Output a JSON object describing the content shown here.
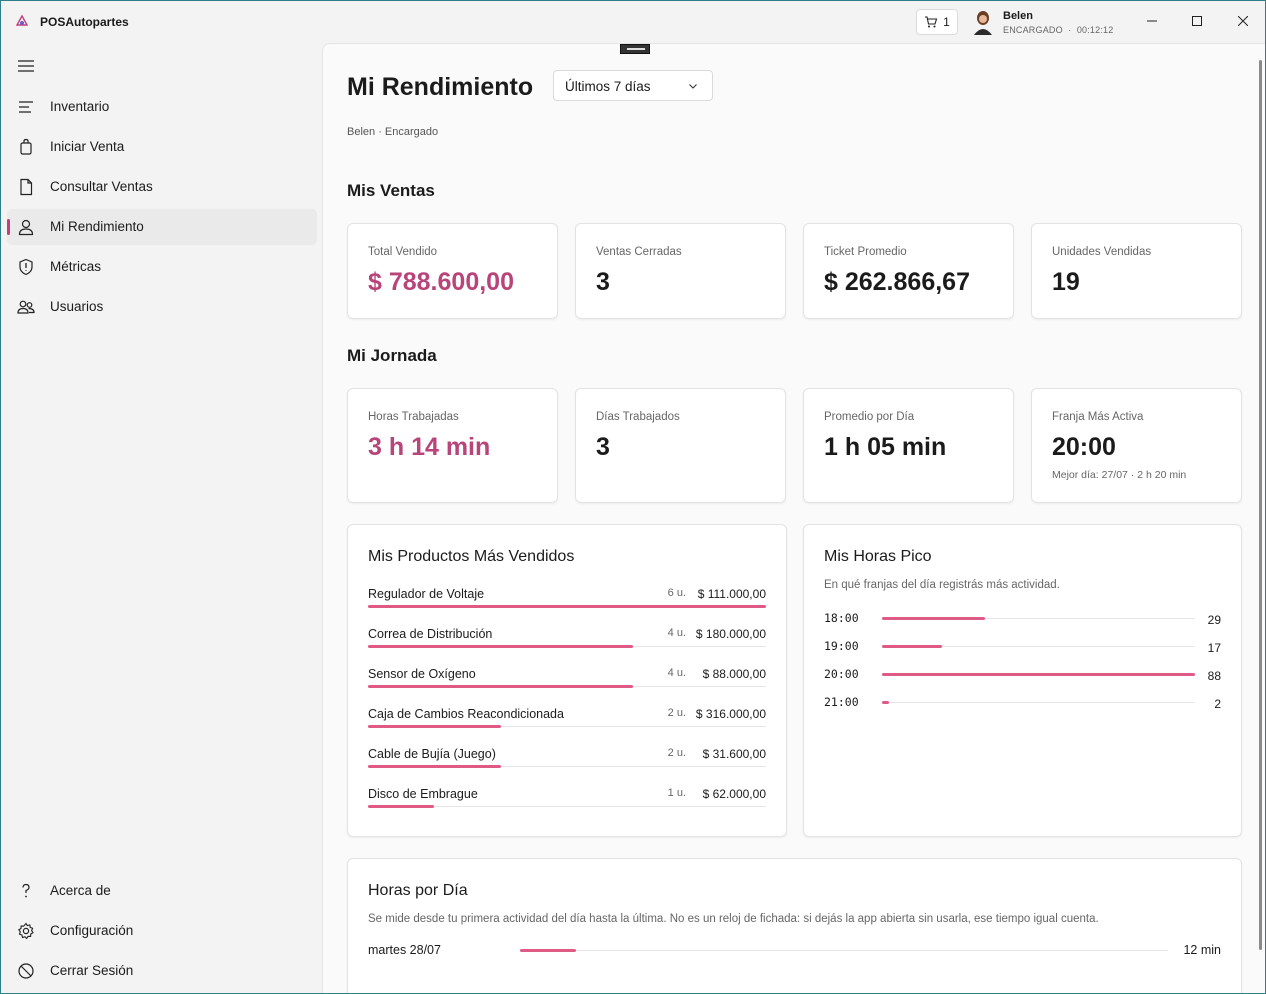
{
  "app": {
    "title": "POSAutopartes"
  },
  "header": {
    "cart_count": "1",
    "user_name": "Belen",
    "user_role": "ENCARGADO",
    "session_time": "00:12:12"
  },
  "sidebar": {
    "items": [
      {
        "label": "Inventario",
        "icon": "list-icon"
      },
      {
        "label": "Iniciar Venta",
        "icon": "bag-icon"
      },
      {
        "label": "Consultar Ventas",
        "icon": "document-icon"
      },
      {
        "label": "Mi Rendimiento",
        "icon": "person-icon",
        "active": true
      },
      {
        "label": "Métricas",
        "icon": "shield-icon"
      },
      {
        "label": "Usuarios",
        "icon": "people-icon"
      }
    ],
    "footer": [
      {
        "label": "Acerca de",
        "icon": "help-icon"
      },
      {
        "label": "Configuración",
        "icon": "gear-icon"
      },
      {
        "label": "Cerrar Sesión",
        "icon": "logout-icon"
      }
    ]
  },
  "page": {
    "title": "Mi Rendimiento",
    "range": "Últimos 7 días",
    "subtitle": "Belen · Encargado"
  },
  "ventas": {
    "title": "Mis Ventas",
    "cards": [
      {
        "label": "Total Vendido",
        "value": "$ 788.600,00",
        "accent": true
      },
      {
        "label": "Ventas Cerradas",
        "value": "3"
      },
      {
        "label": "Ticket Promedio",
        "value": "$ 262.866,67"
      },
      {
        "label": "Unidades Vendidas",
        "value": "19"
      }
    ]
  },
  "jornada": {
    "title": "Mi Jornada",
    "cards": [
      {
        "label": "Horas Trabajadas",
        "value": "3 h 14 min",
        "accent": true
      },
      {
        "label": "Días Trabajados",
        "value": "3"
      },
      {
        "label": "Promedio por Día",
        "value": "1 h 05 min"
      },
      {
        "label": "Franja Más Activa",
        "value": "20:00",
        "note": "Mejor día: 27/07 · 2 h 20 min"
      }
    ]
  },
  "productos": {
    "title": "Mis Productos Más Vendidos",
    "rows": [
      {
        "name": "Regulador de Voltaje",
        "qty": "6 u.",
        "amount": "$ 111.000,00",
        "units": 6
      },
      {
        "name": "Correa de Distribución",
        "qty": "4 u.",
        "amount": "$ 180.000,00",
        "units": 4
      },
      {
        "name": "Sensor de Oxígeno",
        "qty": "4 u.",
        "amount": "$ 88.000,00",
        "units": 4
      },
      {
        "name": "Caja de Cambios Reacondicionada",
        "qty": "2 u.",
        "amount": "$ 316.000,00",
        "units": 2
      },
      {
        "name": "Cable de Bujía (Juego)",
        "qty": "2 u.",
        "amount": "$ 31.600,00",
        "units": 2
      },
      {
        "name": "Disco de Embrague",
        "qty": "1 u.",
        "amount": "$ 62.000,00",
        "units": 1
      }
    ]
  },
  "horas_pico": {
    "title": "Mis Horas Pico",
    "subtitle": "En qué franjas del día registrás más actividad.",
    "rows": [
      {
        "hour": "18:00",
        "count": "29",
        "value": 29
      },
      {
        "hour": "19:00",
        "count": "17",
        "value": 17
      },
      {
        "hour": "20:00",
        "count": "88",
        "value": 88
      },
      {
        "hour": "21:00",
        "count": "2",
        "value": 2
      }
    ]
  },
  "horas_dia": {
    "title": "Horas por Día",
    "subtitle": "Se mide desde tu primera actividad del día hasta la última. No es un reloj de fichada: si dejás la app abierta sin usarla, ese tiempo igual cuenta.",
    "rows": [
      {
        "day": "martes 28/07",
        "duration": "12 min",
        "fraction": 0.086
      }
    ]
  },
  "colors": {
    "accent": "#b8447a",
    "bar": "#e05a86",
    "border": "#2f7f8a"
  }
}
